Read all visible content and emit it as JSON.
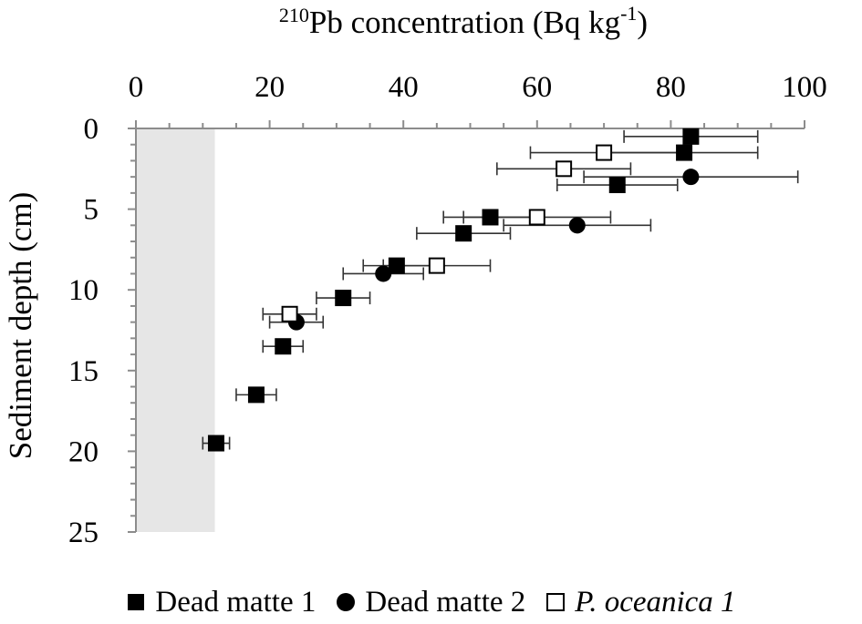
{
  "chart_data": {
    "type": "scatter",
    "title": "",
    "xlabel_main": "Pb concentration (Bq kg",
    "xlabel_isotope": "210",
    "xlabel_exp": "-1",
    "xlabel_close": ")",
    "ylabel": "Sediment depth (cm)",
    "x_axis_position": "top",
    "y_axis_inverted": true,
    "xlim": [
      0,
      100
    ],
    "ylim": [
      0,
      25
    ],
    "x_ticks": [
      "0",
      "20",
      "40",
      "60",
      "80",
      "100"
    ],
    "y_ticks": [
      "0",
      "5",
      "10",
      "15",
      "20",
      "25"
    ],
    "grid": false,
    "legend_position": "bottom",
    "background_band": {
      "x_from": 0,
      "x_to": 11.8,
      "color": "#e6e6e6"
    },
    "series": [
      {
        "name": "Dead matte 1",
        "marker": "filled-square",
        "points": [
          {
            "x": 83.0,
            "y": 0.5,
            "xerr": 10.0
          },
          {
            "x": 82.0,
            "y": 1.5,
            "xerr": 11.0
          },
          {
            "x": 72.0,
            "y": 3.5,
            "xerr": 9.0
          },
          {
            "x": 53.0,
            "y": 5.5,
            "xerr": 7.0
          },
          {
            "x": 49.0,
            "y": 6.5,
            "xerr": 7.0
          },
          {
            "x": 39.0,
            "y": 8.5,
            "xerr": 5.0
          },
          {
            "x": 31.0,
            "y": 10.5,
            "xerr": 4.0
          },
          {
            "x": 22.0,
            "y": 13.5,
            "xerr": 3.0
          },
          {
            "x": 18.0,
            "y": 16.5,
            "xerr": 3.0
          },
          {
            "x": 12.0,
            "y": 19.5,
            "xerr": 2.0
          }
        ]
      },
      {
        "name": "Dead matte 2",
        "marker": "filled-circle",
        "points": [
          {
            "x": 83.0,
            "y": 3.0,
            "xerr": 16.0
          },
          {
            "x": 66.0,
            "y": 6.0,
            "xerr": 11.0
          },
          {
            "x": 37.0,
            "y": 9.0,
            "xerr": 6.0
          },
          {
            "x": 24.0,
            "y": 12.0,
            "xerr": 4.0
          }
        ]
      },
      {
        "name": "P. oceanica 1",
        "marker": "open-square",
        "points": [
          {
            "x": 70.0,
            "y": 1.5,
            "xerr": 11.0
          },
          {
            "x": 64.0,
            "y": 2.5,
            "xerr": 10.0
          },
          {
            "x": 60.0,
            "y": 5.5,
            "xerr": 11.0
          },
          {
            "x": 45.0,
            "y": 8.5,
            "xerr": 8.0
          },
          {
            "x": 23.0,
            "y": 11.5,
            "xerr": 4.0
          }
        ]
      }
    ]
  },
  "legend": {
    "items": [
      {
        "label": "Dead matte 1",
        "marker": "filled-square"
      },
      {
        "label": "Dead matte 2",
        "marker": "filled-circle"
      },
      {
        "label": "P. oceanica 1",
        "marker": "open-square"
      }
    ]
  }
}
